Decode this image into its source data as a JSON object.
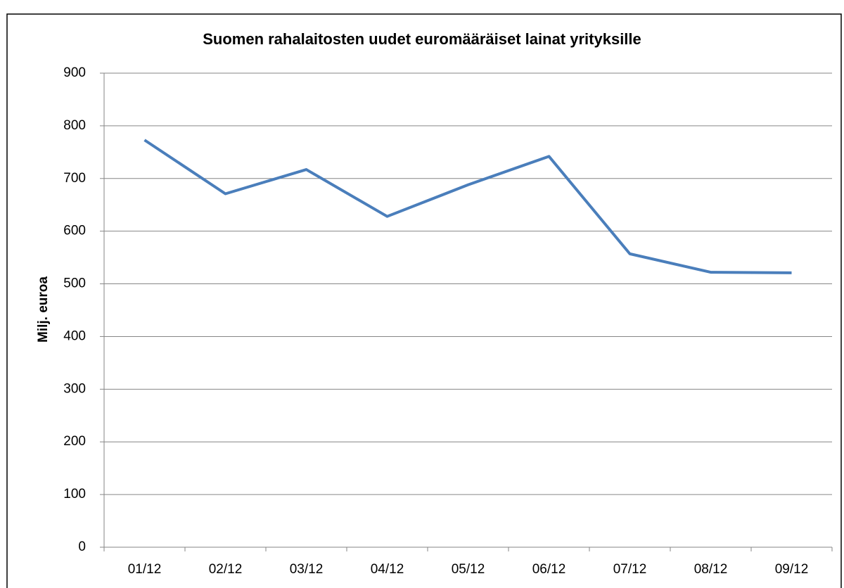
{
  "chart_data": {
    "type": "line",
    "title": "Suomen rahalaitosten uudet euromääräiset lainat yrityksille",
    "y_label": "Milj. euroa",
    "categories": [
      "01/12",
      "02/12",
      "03/12",
      "04/12",
      "05/12",
      "06/12",
      "07/12",
      "08/12",
      "09/12"
    ],
    "series": [
      {
        "color": "#4a7ebb",
        "values": [
          773,
          671,
          717,
          628,
          688,
          742,
          557,
          522,
          521
        ]
      }
    ],
    "ylim": [
      0,
      900
    ],
    "yticks": [
      0,
      100,
      200,
      300,
      400,
      500,
      600,
      700,
      800,
      900
    ],
    "grid": true
  }
}
